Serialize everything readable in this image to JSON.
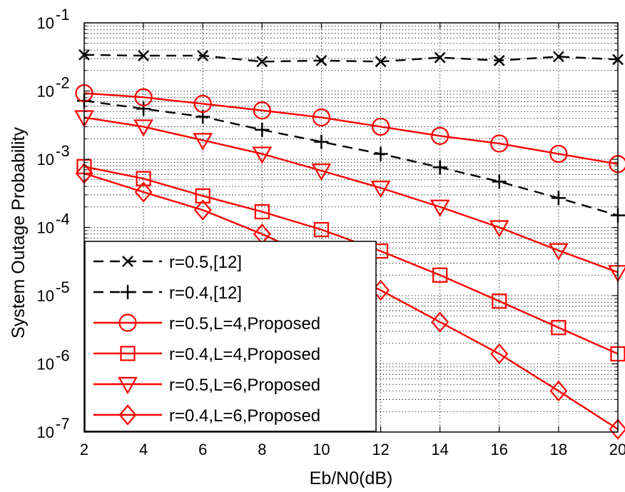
{
  "chart_data": {
    "type": "line",
    "title": "",
    "xlabel": "Eb/N0(dB)",
    "ylabel": "System Outage Probability",
    "xlim": [
      2,
      20
    ],
    "ylim": [
      1e-07,
      0.1
    ],
    "yscale": "log",
    "grid": true,
    "legend_position": "bottom-left",
    "x_ticks": [
      "2",
      "4",
      "6",
      "8",
      "10",
      "12",
      "14",
      "16",
      "18",
      "20"
    ],
    "y_ticks": [
      {
        "base": "10",
        "exp": "-7",
        "value": 1e-07
      },
      {
        "base": "10",
        "exp": "-6",
        "value": 1e-06
      },
      {
        "base": "10",
        "exp": "-5",
        "value": 1e-05
      },
      {
        "base": "10",
        "exp": "-4",
        "value": 0.0001
      },
      {
        "base": "10",
        "exp": "-3",
        "value": 0.001
      },
      {
        "base": "10",
        "exp": "-2",
        "value": 0.01
      },
      {
        "base": "10",
        "exp": "-1",
        "value": 0.1
      }
    ],
    "x": [
      2,
      4,
      6,
      8,
      10,
      12,
      14,
      16,
      18,
      20
    ],
    "series": [
      {
        "name": "r=0.5,[12]",
        "color": "#000000",
        "dash": true,
        "marker": "x",
        "values": [
          0.034,
          0.033,
          0.033,
          0.027,
          0.028,
          0.027,
          0.031,
          0.028,
          0.032,
          0.029
        ]
      },
      {
        "name": "r=0.4,[12]",
        "color": "#000000",
        "dash": true,
        "marker": "plus",
        "values": [
          0.0072,
          0.0055,
          0.0042,
          0.0027,
          0.0018,
          0.0012,
          0.00076,
          0.00047,
          0.00027,
          0.00015
        ]
      },
      {
        "name": "r=0.5,L=4,Proposed",
        "color": "#ff0000",
        "dash": false,
        "marker": "circle",
        "values": [
          0.0093,
          0.0081,
          0.0065,
          0.0052,
          0.0041,
          0.003,
          0.0022,
          0.0017,
          0.0012,
          0.00085
        ]
      },
      {
        "name": "r=0.4,L=4,Proposed",
        "color": "#ff0000",
        "dash": false,
        "marker": "square",
        "values": [
          0.00078,
          0.00052,
          0.00029,
          0.00017,
          9.3e-05,
          4.5e-05,
          2e-05,
          8.3e-06,
          3.4e-06,
          1.4e-06
        ]
      },
      {
        "name": "r=0.5,L=6,Proposed",
        "color": "#ff0000",
        "dash": false,
        "marker": "triangle-down",
        "values": [
          0.0041,
          0.003,
          0.0019,
          0.0012,
          0.00068,
          0.00038,
          0.0002,
          0.0001,
          4.6e-05,
          2.2e-05
        ]
      },
      {
        "name": "r=0.4,L=6,Proposed",
        "color": "#ff0000",
        "dash": false,
        "marker": "diamond",
        "values": [
          0.00062,
          0.00033,
          0.00018,
          8e-05,
          3.2e-05,
          1.2e-05,
          4.1e-06,
          1.4e-06,
          4e-07,
          1.1e-07
        ]
      }
    ]
  }
}
